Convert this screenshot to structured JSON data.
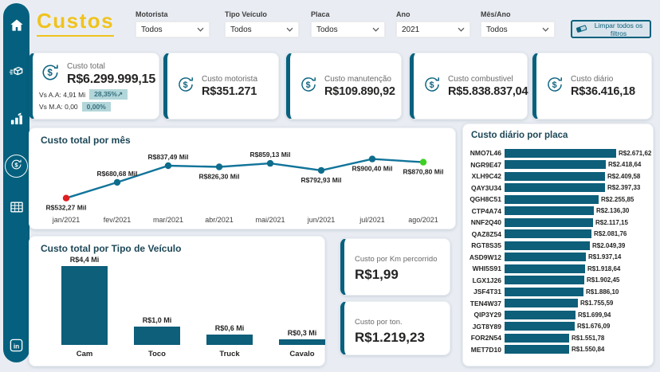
{
  "page": {
    "title": "Custos"
  },
  "colors": {
    "teal_dark": "#04607e",
    "bar_teal": "#0d5f7a",
    "line_teal": "#11749a",
    "gold": "#f0c31d",
    "badge_bg": "#b2d6da",
    "badge_text": "#35707f",
    "dot_first_red": "#e02020",
    "dot_last_green": "#3fcf25"
  },
  "sidebar": {
    "icons": [
      "home",
      "delivery-box",
      "growth-chart",
      "money-cycle",
      "data-table",
      "linkedin"
    ],
    "active": "money-cycle"
  },
  "filters": {
    "items": [
      {
        "label": "Motorista",
        "value": "Todos"
      },
      {
        "label": "Tipo Veículo",
        "value": "Todos"
      },
      {
        "label": "Placa",
        "value": "Todos"
      },
      {
        "label": "Ano",
        "value": "2021"
      },
      {
        "label": "Mês/Ano",
        "value": "Todos"
      }
    ],
    "clear_label": "Limpar todos os filtros"
  },
  "kpis": {
    "total": {
      "label": "Custo total",
      "value": "R$6.299.999,15",
      "vs_aa": "Vs A.A: 4,91 Mi",
      "vs_aa_badge": "28,35%↗",
      "vs_ma": "Vs M.A: 0,00",
      "vs_ma_badge": "0,00%"
    },
    "cards": [
      {
        "label": "Custo motorista",
        "value": "R$351.271"
      },
      {
        "label": "Custo manutenção",
        "value": "R$109.890,92"
      },
      {
        "label": "Custo combustivel",
        "value": "R$5.838.837,04"
      },
      {
        "label": "Custo diário",
        "value": "R$36.416,18"
      }
    ]
  },
  "mini_cards": [
    {
      "label": "Custo por Km percorrido",
      "value": "R$1,99"
    },
    {
      "label": "Custo por ton.",
      "value": "R$1.219,23"
    }
  ],
  "chart_data": [
    {
      "type": "line",
      "title": "Custo total por mês",
      "x": [
        "jan/2021",
        "fev/2021",
        "mar/2021",
        "abr/2021",
        "mai/2021",
        "jun/2021",
        "jul/2021",
        "ago/2021"
      ],
      "values": [
        532.27,
        680.68,
        837.49,
        826.3,
        859.13,
        792.93,
        900.4,
        870.8
      ],
      "point_labels": [
        "R$532,27 Mil",
        "R$680,68 Mil",
        "R$837,49 Mil",
        "R$826,30 Mil",
        "R$859,13 Mil",
        "R$792,93 Mil",
        "R$900,40 Mil",
        "R$870,80 Mil"
      ],
      "label_pos": [
        "below",
        "above",
        "above",
        "below",
        "above",
        "below",
        "below",
        "below"
      ],
      "unit": "Mil (R$)",
      "ylim": [
        500,
        950
      ],
      "grid": false,
      "legend": false,
      "first_point_color": "#e02020",
      "last_point_color": "#3fcf25"
    },
    {
      "type": "bar",
      "title": "Custo total por Tipo de Veículo",
      "categories": [
        "Cam",
        "Toco",
        "Truck",
        "Cavalo"
      ],
      "values": [
        4.4,
        1.0,
        0.6,
        0.3
      ],
      "bar_labels": [
        "R$4,4 Mi",
        "R$1,0 Mi",
        "R$0,6 Mi",
        "R$0,3 Mi"
      ],
      "unit": "Mi (R$)",
      "ylim": [
        0,
        4.9
      ],
      "grid": false,
      "legend": false
    },
    {
      "type": "bar-horizontal",
      "title": "Custo diário por placa",
      "categories": [
        "NMO7L46",
        "NGR9E47",
        "XLH9C42",
        "QAY3U34",
        "QGH8C51",
        "CTP4A74",
        "NNF2Q40",
        "QAZ8Z54",
        "RGT8S35",
        "ASD9W12",
        "WHI5S91",
        "LGX1J26",
        "JSF4T31",
        "TEN4W37",
        "QIP3Y29",
        "JGT8Y89",
        "FOR2N54",
        "MET7D10"
      ],
      "values": [
        2671.62,
        2418.64,
        2409.58,
        2397.33,
        2255.85,
        2136.3,
        2117.15,
        2081.76,
        2049.39,
        1937.14,
        1918.64,
        1902.45,
        1886.1,
        1755.59,
        1699.94,
        1676.09,
        1551.78,
        1550.84
      ],
      "value_labels": [
        "R$2.671,62",
        "R$2.418,64",
        "R$2.409,58",
        "R$2.397,33",
        "R$2.255,85",
        "R$2.136,30",
        "R$2.117,15",
        "R$2.081,76",
        "R$2.049,39",
        "R$1.937,14",
        "R$1.918,64",
        "R$1.902,45",
        "R$1.886,10",
        "R$1.755,59",
        "R$1.699,94",
        "R$1.676,09",
        "R$1.551,78",
        "R$1.550,84"
      ],
      "xlim": [
        0,
        2671.62
      ],
      "grid": false,
      "legend": false
    }
  ]
}
